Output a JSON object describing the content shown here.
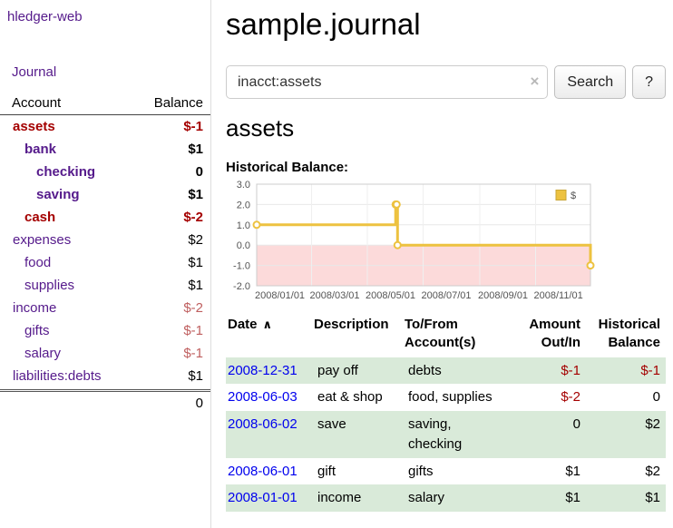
{
  "app": {
    "title": "hledger-web"
  },
  "colors": {
    "accent_purple": "#551a8b",
    "link_blue": "#0000ee",
    "negative_dark": "#a40000",
    "negative_soft": "#bf5f5f",
    "row_green": "#d9ead9",
    "chart_gold": "#edc240"
  },
  "sidebar": {
    "journal_link": "Journal",
    "accounts_header": {
      "account": "Account",
      "balance": "Balance"
    },
    "accounts": [
      {
        "name": "assets",
        "depth": 1,
        "bold": true,
        "negative_name": true,
        "balance": "$-1",
        "balance_tone": "negative-dark"
      },
      {
        "name": "bank",
        "depth": 2,
        "bold": true,
        "negative_name": false,
        "balance": "$1",
        "balance_tone": "normal"
      },
      {
        "name": "checking",
        "depth": 3,
        "bold": true,
        "negative_name": false,
        "balance": "0",
        "balance_tone": "normal"
      },
      {
        "name": "saving",
        "depth": 3,
        "bold": true,
        "negative_name": false,
        "balance": "$1",
        "balance_tone": "normal"
      },
      {
        "name": "cash",
        "depth": 2,
        "bold": true,
        "negative_name": true,
        "balance": "$-2",
        "balance_tone": "negative-dark"
      },
      {
        "name": "expenses",
        "depth": 1,
        "bold": false,
        "negative_name": false,
        "balance": "$2",
        "balance_tone": "normal"
      },
      {
        "name": "food",
        "depth": 2,
        "bold": false,
        "negative_name": false,
        "balance": "$1",
        "balance_tone": "normal"
      },
      {
        "name": "supplies",
        "depth": 2,
        "bold": false,
        "negative_name": false,
        "balance": "$1",
        "balance_tone": "normal"
      },
      {
        "name": "income",
        "depth": 1,
        "bold": false,
        "negative_name": false,
        "balance": "$-2",
        "balance_tone": "negative-soft"
      },
      {
        "name": "gifts",
        "depth": 2,
        "bold": false,
        "negative_name": false,
        "balance": "$-1",
        "balance_tone": "negative-soft"
      },
      {
        "name": "salary",
        "depth": 2,
        "bold": false,
        "negative_name": false,
        "balance": "$-1",
        "balance_tone": "negative-soft"
      },
      {
        "name": "liabilities:debts",
        "depth": 1,
        "bold": false,
        "negative_name": false,
        "balance": "$1",
        "balance_tone": "normal"
      }
    ],
    "total": "0"
  },
  "main": {
    "title": "sample.journal",
    "search": {
      "value": "inacct:assets",
      "clear_icon": "×",
      "button": "Search",
      "help": "?"
    },
    "account_heading": "assets",
    "chart_label": "Historical Balance:",
    "register": {
      "headers": {
        "date": "Date",
        "sort_icon": "∧",
        "description": "Description",
        "to_from_line1": "To/From",
        "to_from_line2": "Account(s)",
        "amount_line1": "Amount",
        "amount_line2": "Out/In",
        "historical_line1": "Historical",
        "historical_line2": "Balance"
      },
      "rows": [
        {
          "date": "2008-12-31",
          "description": "pay off",
          "accounts": "debts",
          "amount": "$-1",
          "amount_negative": true,
          "balance": "$-1",
          "balance_negative": true,
          "shaded": true
        },
        {
          "date": "2008-06-03",
          "description": "eat & shop",
          "accounts": "food, supplies",
          "amount": "$-2",
          "amount_negative": true,
          "balance": "0",
          "balance_negative": false,
          "shaded": false
        },
        {
          "date": "2008-06-02",
          "description": "save",
          "accounts": "saving,\nchecking",
          "amount": "0",
          "amount_negative": false,
          "balance": "$2",
          "balance_negative": false,
          "shaded": true
        },
        {
          "date": "2008-06-01",
          "description": "gift",
          "accounts": "gifts",
          "amount": "$1",
          "amount_negative": false,
          "balance": "$2",
          "balance_negative": false,
          "shaded": false
        },
        {
          "date": "2008-01-01",
          "description": "income",
          "accounts": "salary",
          "amount": "$1",
          "amount_negative": false,
          "balance": "$1",
          "balance_negative": false,
          "shaded": true
        }
      ]
    }
  },
  "chart_data": {
    "type": "line",
    "title": "Historical Balance",
    "step": true,
    "x": [
      "2008-01-01",
      "2008-06-01",
      "2008-06-02",
      "2008-06-03",
      "2008-12-31"
    ],
    "series": [
      {
        "name": "$",
        "color": "#edc240",
        "values": [
          1,
          2,
          2,
          0,
          -1
        ]
      }
    ],
    "xlim": [
      "2008-01-01",
      "2008-12-31"
    ],
    "ylim": [
      -2,
      3
    ],
    "x_tick_labels": [
      "2008/01/01",
      "2008/03/01",
      "2008/05/01",
      "2008/07/01",
      "2008/09/01",
      "2008/11/01"
    ],
    "y_ticks": [
      3,
      2,
      1,
      0,
      -1,
      -2
    ],
    "y_tick_labels": [
      "3.0",
      "2.0",
      "1.0",
      "0.0",
      "-1.0",
      "-2.0"
    ],
    "grid": true,
    "negative_region_color": "#fcdada",
    "legend": {
      "label": "$",
      "position": "top-right"
    }
  }
}
